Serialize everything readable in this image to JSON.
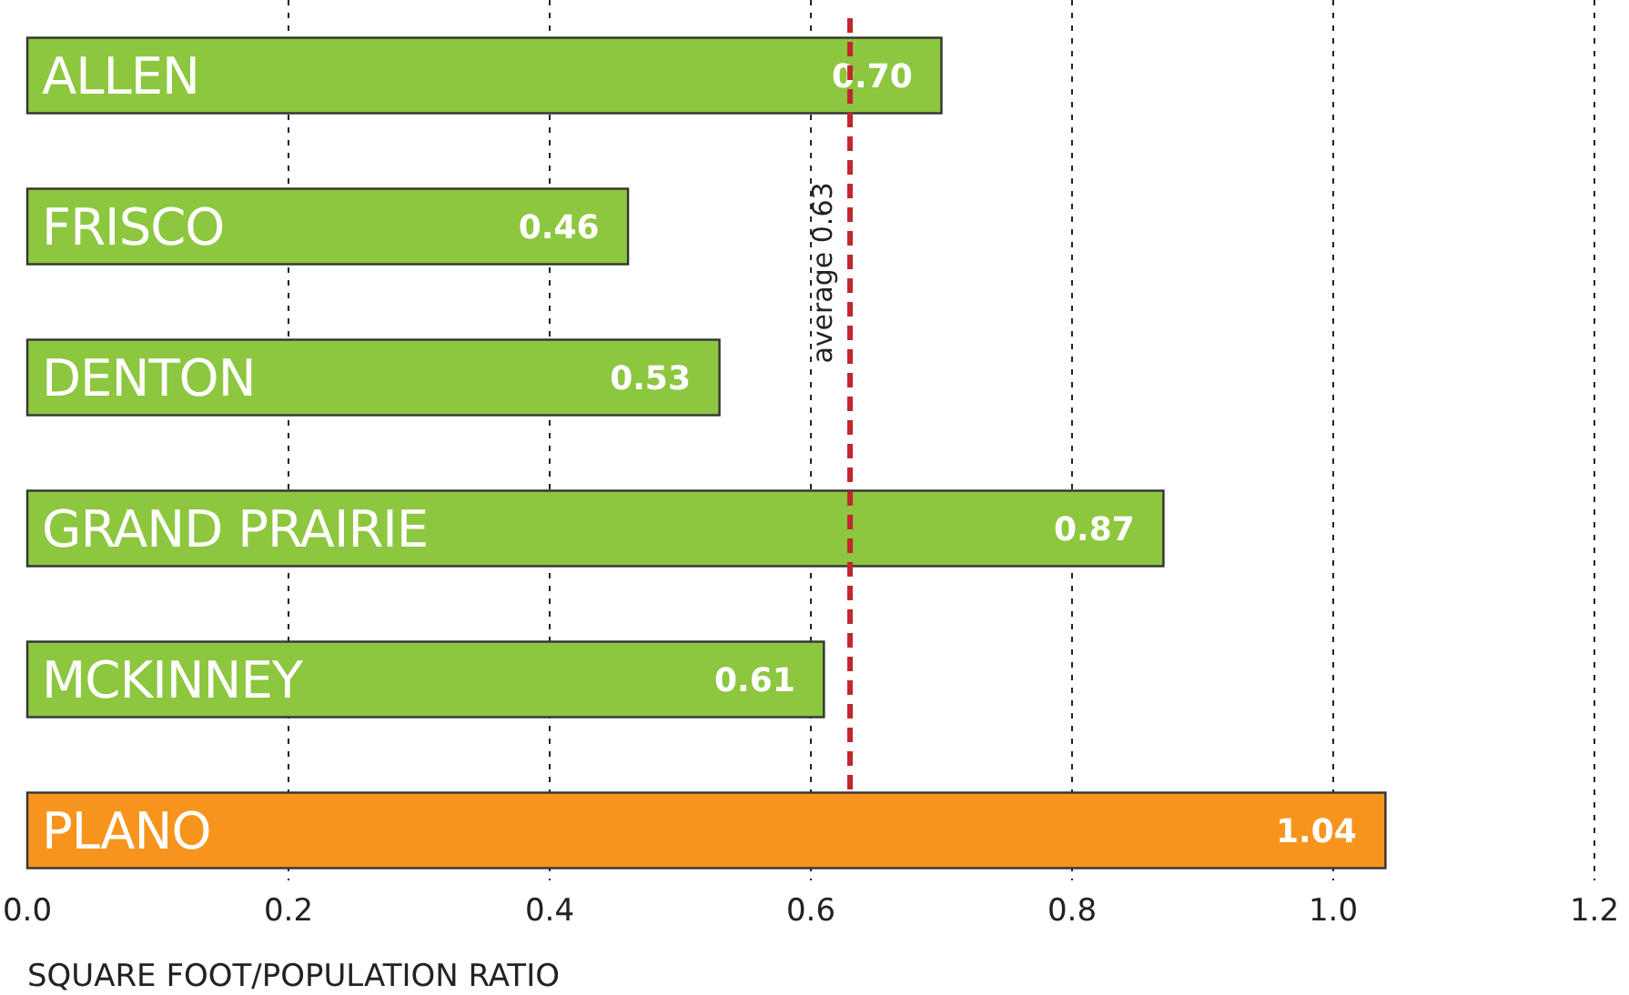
{
  "chart_data": {
    "type": "bar",
    "orientation": "horizontal",
    "xlabel": "SQUARE FOOT/POPULATION RATIO",
    "categories": [
      "ALLEN",
      "FRISCO",
      "DENTON",
      "GRAND PRAIRIE",
      "MCKINNEY",
      "PLANO"
    ],
    "values": [
      0.7,
      0.46,
      0.53,
      0.87,
      0.61,
      1.04
    ],
    "value_labels": [
      "0.70",
      "0.46",
      "0.53",
      "0.87",
      "0.61",
      "1.04"
    ],
    "colors": [
      "#8dc63f",
      "#8dc63f",
      "#8dc63f",
      "#8dc63f",
      "#8dc63f",
      "#f7941d"
    ],
    "xlim": [
      0,
      1.2
    ],
    "xticks": [
      {
        "value": 0,
        "label": "0.0"
      },
      0.2,
      0.4,
      0.6,
      0.8,
      {
        "value": 1,
        "label": "1.0"
      },
      1.2
    ],
    "grid": "x",
    "ref_lines": [
      {
        "axis": "x",
        "value": 0.63,
        "label": "average 0.63",
        "color": "#c1272d",
        "line_style": "dashed"
      }
    ]
  }
}
